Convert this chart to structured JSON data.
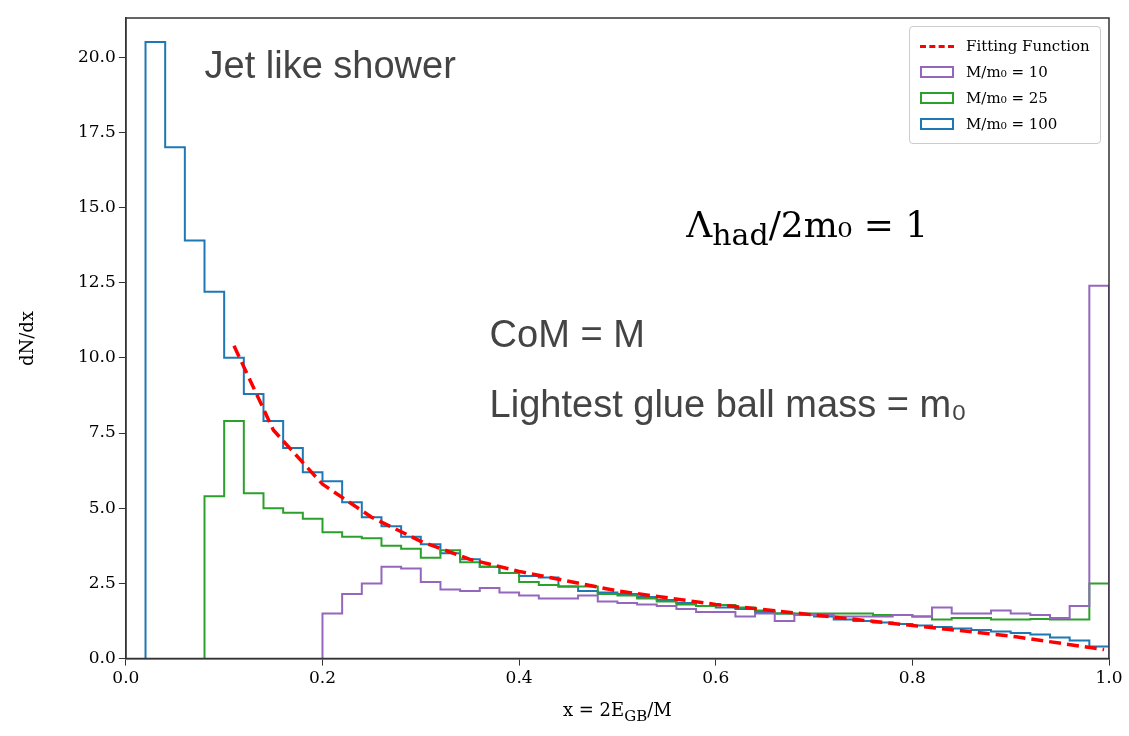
{
  "chart_data": {
    "type": "histogram",
    "xlabel": "x = 2E$_{GB}$/M",
    "ylabel": "dN/dx",
    "annotations": [
      "Jet like shower",
      "Λ$_{had}$/2m₀ = 1",
      "CoM = M",
      "Lightest glue ball mass  = m₀"
    ],
    "series": [
      {
        "name": "Fitting Function",
        "type": "line",
        "color": "#ff0000",
        "line_style": "dashed",
        "x": [
          0.11,
          0.15,
          0.2,
          0.25,
          0.3,
          0.35,
          0.4,
          0.5,
          0.6,
          0.7,
          0.8,
          0.9,
          0.995
        ],
        "values": [
          10.4,
          7.6,
          5.8,
          4.7,
          3.9,
          3.3,
          2.9,
          2.25,
          1.8,
          1.45,
          1.1,
          0.75,
          0.3
        ]
      },
      {
        "name": "M/m₀ = 10",
        "color": "#9467bd",
        "bins": [
          0.2,
          0.22,
          0.24,
          0.26,
          0.28,
          0.3,
          0.32,
          0.34,
          0.36,
          0.38,
          0.4,
          0.42,
          0.44,
          0.46,
          0.48,
          0.5,
          0.52,
          0.54,
          0.56,
          0.58,
          0.6,
          0.62,
          0.64,
          0.66,
          0.68,
          0.7,
          0.72,
          0.74,
          0.76,
          0.78,
          0.8,
          0.82,
          0.84,
          0.86,
          0.88,
          0.9,
          0.92,
          0.94,
          0.96,
          0.98,
          1
        ],
        "values": [
          1.5,
          2.15,
          2.5,
          3.05,
          3.0,
          2.55,
          2.3,
          2.25,
          2.35,
          2.2,
          2.1,
          2.0,
          2.0,
          2.1,
          1.9,
          1.85,
          1.8,
          1.75,
          1.65,
          1.55,
          1.55,
          1.4,
          1.5,
          1.25,
          1.45,
          1.45,
          1.4,
          1.4,
          1.4,
          1.45,
          1.4,
          1.7,
          1.5,
          1.5,
          1.6,
          1.5,
          1.45,
          1.35,
          1.75,
          12.4
        ]
      },
      {
        "name": "M/m₀ = 25",
        "color": "#2ca02c",
        "bins": [
          0.08,
          0.1,
          0.12,
          0.14,
          0.16,
          0.18,
          0.2,
          0.22,
          0.24,
          0.26,
          0.28,
          0.3,
          0.32,
          0.34,
          0.36,
          0.38,
          0.4,
          0.42,
          0.44,
          0.46,
          0.48,
          0.5,
          0.52,
          0.54,
          0.56,
          0.58,
          0.6,
          0.62,
          0.64,
          0.66,
          0.68,
          0.7,
          0.72,
          0.74,
          0.76,
          0.78,
          0.8,
          0.82,
          0.84,
          0.86,
          0.88,
          0.9,
          0.92,
          0.94,
          0.96,
          0.98,
          1
        ],
        "values": [
          5.4,
          7.9,
          5.5,
          5.0,
          4.85,
          4.65,
          4.2,
          4.05,
          4.0,
          3.75,
          3.65,
          3.35,
          3.6,
          3.2,
          3.05,
          2.85,
          2.55,
          2.45,
          2.4,
          2.4,
          2.15,
          2.1,
          2.0,
          1.9,
          1.8,
          1.75,
          1.78,
          1.7,
          1.6,
          1.5,
          1.5,
          1.5,
          1.5,
          1.5,
          1.45,
          1.45,
          1.4,
          1.3,
          1.35,
          1.35,
          1.3,
          1.3,
          1.32,
          1.3,
          1.3,
          2.5
        ]
      },
      {
        "name": "M/m₀ = 100",
        "color": "#1f77b4",
        "bins": [
          0.02,
          0.04,
          0.06,
          0.08,
          0.1,
          0.12,
          0.14,
          0.16,
          0.18,
          0.2,
          0.22,
          0.24,
          0.26,
          0.28,
          0.3,
          0.32,
          0.34,
          0.36,
          0.38,
          0.4,
          0.42,
          0.44,
          0.46,
          0.48,
          0.5,
          0.52,
          0.54,
          0.56,
          0.58,
          0.6,
          0.62,
          0.64,
          0.66,
          0.68,
          0.7,
          0.72,
          0.74,
          0.76,
          0.78,
          0.8,
          0.82,
          0.84,
          0.86,
          0.88,
          0.9,
          0.92,
          0.94,
          0.96,
          0.98,
          1
        ],
        "values": [
          20.5,
          17.0,
          13.9,
          12.2,
          10.0,
          8.8,
          7.9,
          7.0,
          6.2,
          5.9,
          5.2,
          4.7,
          4.4,
          4.05,
          3.8,
          3.5,
          3.3,
          3.05,
          2.85,
          2.75,
          2.7,
          2.4,
          2.25,
          2.2,
          2.15,
          2.05,
          1.95,
          1.85,
          1.75,
          1.7,
          1.65,
          1.55,
          1.5,
          1.45,
          1.4,
          1.3,
          1.25,
          1.2,
          1.15,
          1.1,
          1.05,
          1.0,
          0.95,
          0.9,
          0.85,
          0.8,
          0.7,
          0.6,
          0.4
        ]
      }
    ],
    "xlim": [
      0,
      1
    ],
    "ylim": [
      0,
      21.3
    ],
    "xticks": [
      {
        "value": 0,
        "label": "0.0"
      },
      0.2,
      0.4,
      0.6,
      0.8,
      {
        "value": 1,
        "label": "1.0"
      }
    ],
    "yticks": [
      {
        "value": 0,
        "label": "0.0"
      },
      2.5,
      {
        "value": 5,
        "label": "5.0"
      },
      7.5,
      {
        "value": 10,
        "label": "10.0"
      },
      12.5,
      {
        "value": 15,
        "label": "15.0"
      },
      17.5,
      {
        "value": 20,
        "label": "20.0"
      }
    ],
    "legend": "top right"
  }
}
